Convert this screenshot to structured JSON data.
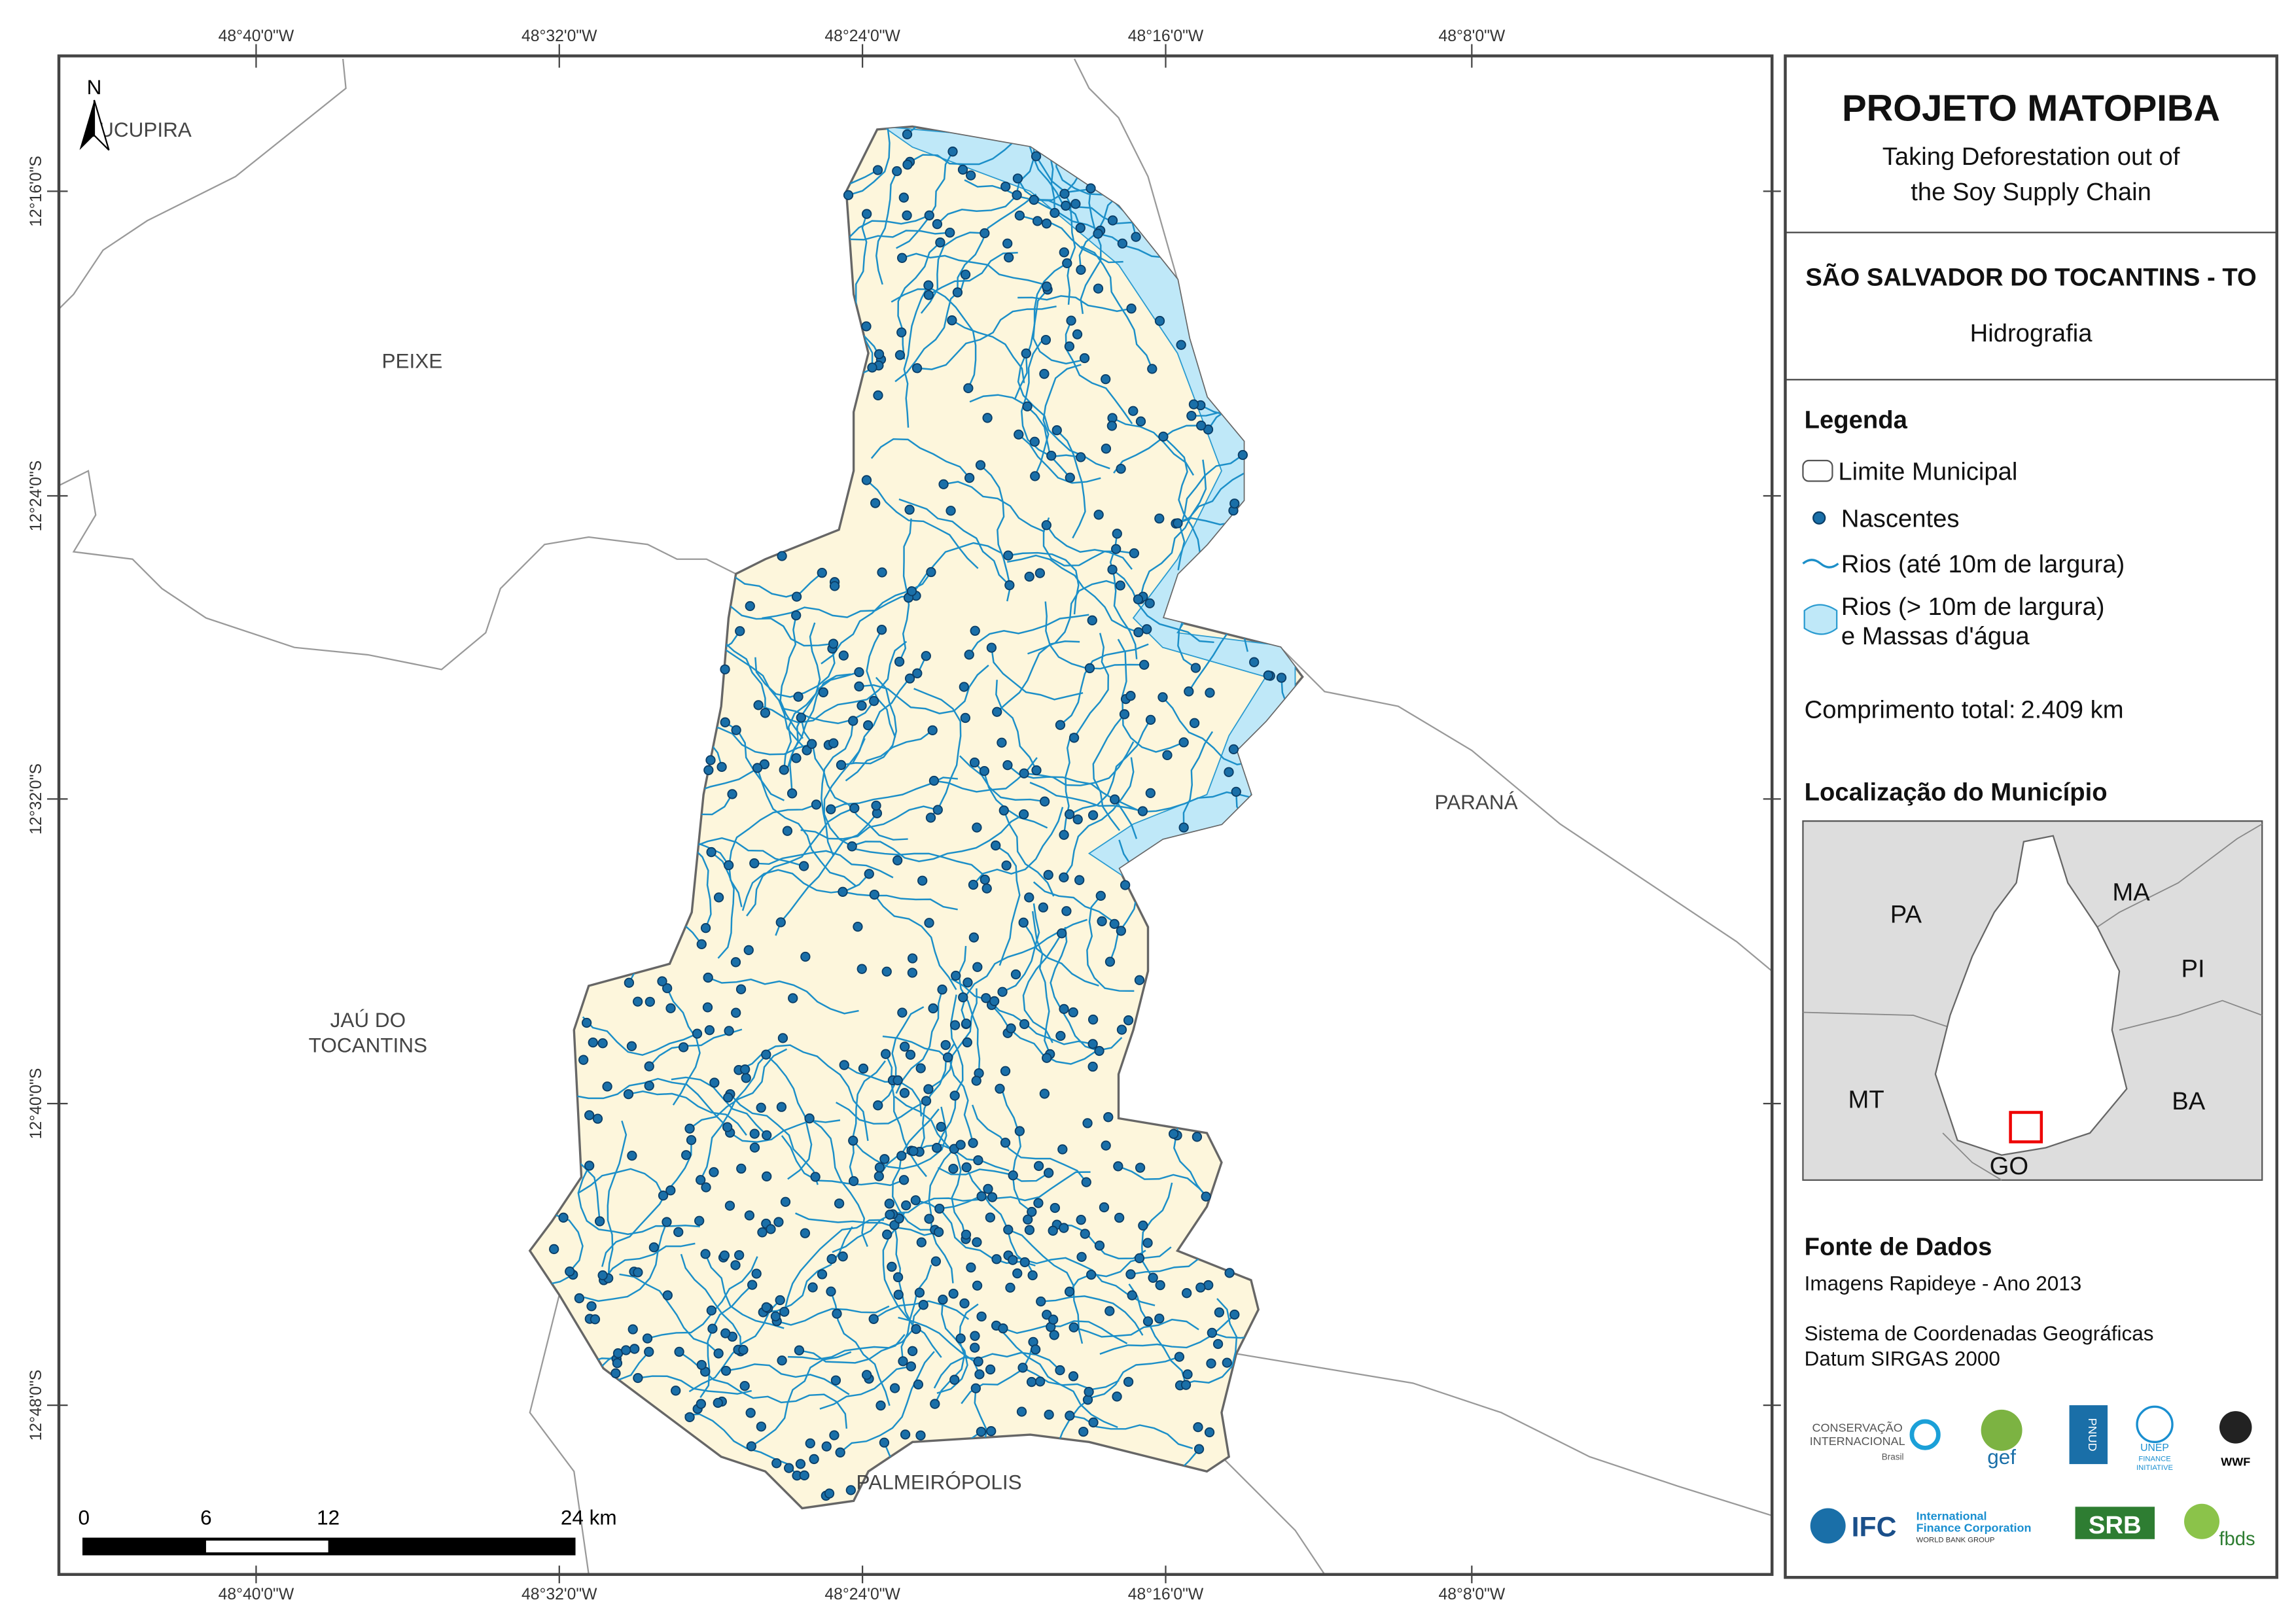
{
  "map": {
    "north_arrow": "N",
    "lon_labels": [
      "48°40'0\"W",
      "48°32'0\"W",
      "48°24'0\"W",
      "48°16'0\"W",
      "48°8'0\"W"
    ],
    "lat_labels": [
      "12°16'0\"S",
      "12°24'0\"S",
      "12°32'0\"S",
      "12°40'0\"S",
      "12°48'0\"S"
    ],
    "places": {
      "sucupira": "SUCUPIRA",
      "peixe": "PEIXE",
      "parana": "PARANÁ",
      "jau": [
        "JAÚ DO",
        "TOCANTINS"
      ],
      "palmeiropolis": "PALMEIRÓPOLIS"
    },
    "scale_bar": [
      "0",
      "6",
      "12",
      "24 km"
    ]
  },
  "panel": {
    "title": "PROJETO MATOPIBA",
    "subtitle": [
      "Taking Deforestation out of",
      "the Soy Supply Chain"
    ],
    "municipality": "SÃO SALVADOR DO TOCANTINS - TO",
    "theme": "Hidrografia"
  },
  "legend": {
    "title": "Legenda",
    "items": [
      "Limite Municipal",
      "Nascentes",
      "Rios (até 10m de largura)",
      [
        "Rios (> 10m de largura)",
        "e Massas d'água"
      ]
    ],
    "total_label": "Comprimento total:",
    "total_value": "2.409 km"
  },
  "location": {
    "title": "Localização do Município",
    "states": [
      "PA",
      "MA",
      "PI",
      "MT",
      "BA",
      "GO"
    ]
  },
  "sources": {
    "title": "Fonte de Dados",
    "lines": [
      "Imagens Rapideye - Ano 2013",
      "Sistema de Coordenadas Geográficas",
      "Datum SIRGAS 2000"
    ]
  },
  "logos": {
    "ci": [
      "CONSERVAÇÃO",
      "INTERNACIONAL",
      "Brasil"
    ],
    "gef": "gef",
    "pnud": "PNUD",
    "unep": [
      "UNEP",
      "FINANCE",
      "INITIATIVE"
    ],
    "wwf": "WWF",
    "ifc": [
      "IFC",
      "International",
      "Finance Corporation",
      "WORLD BANK GROUP"
    ],
    "srb": "SRB",
    "fbds": "fbds"
  }
}
